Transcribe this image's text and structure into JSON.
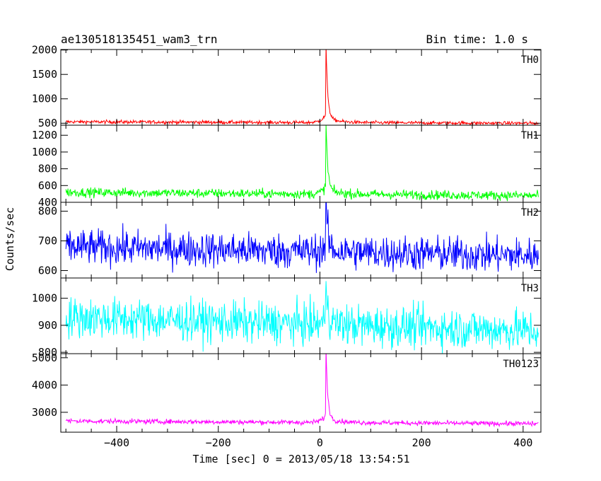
{
  "chart_data": {
    "type": "line",
    "title": "ae130518135451_wam3_trn",
    "bin_time_label": "Bin time: 1.0 s",
    "xlabel": "Time [sec] 0 = 2013/05/18 13:54:51",
    "ylabel": "Counts/sec",
    "xlim": [
      -510,
      435
    ],
    "x_ticks": [
      "−400",
      "−200",
      "0",
      "200",
      "400"
    ],
    "x_tick_values": [
      -400,
      -200,
      0,
      200,
      400
    ],
    "data_x_range": [
      -500,
      430
    ],
    "peak_time": 12,
    "panels": [
      {
        "name": "TH0",
        "color": "#ff0000",
        "ylim": [
          460,
          2010
        ],
        "y_ticks": [
          500,
          1000,
          1500,
          2000
        ],
        "y_tick_labels": [
          "500",
          "1000",
          "1500",
          "2000"
        ],
        "baseline_start": 530,
        "baseline_end": 500,
        "noise": 18,
        "peak": 2000
      },
      {
        "name": "TH1",
        "color": "#00ff00",
        "ylim": [
          400,
          1320
        ],
        "y_ticks": [
          400,
          600,
          800,
          1000,
          1200
        ],
        "y_tick_labels": [
          "400",
          "600",
          "800",
          "1000",
          "1200"
        ],
        "baseline_start": 520,
        "baseline_end": 480,
        "noise": 28,
        "peak": 1300
      },
      {
        "name": "TH2",
        "color": "#0000ff",
        "ylim": [
          575,
          830
        ],
        "y_ticks": [
          600,
          700,
          800
        ],
        "y_tick_labels": [
          "600",
          "700",
          "800"
        ],
        "baseline_start": 680,
        "baseline_end": 650,
        "noise": 30,
        "peak": 830
      },
      {
        "name": "TH3",
        "color": "#00ffff",
        "ylim": [
          795,
          1075
        ],
        "y_ticks": [
          800,
          900,
          1000
        ],
        "y_tick_labels": [
          "800",
          "900",
          "1000"
        ],
        "baseline_start": 930,
        "baseline_end": 880,
        "noise": 38,
        "peak": 1080
      },
      {
        "name": "TH0123",
        "color": "#ff00ff",
        "ylim": [
          2270,
          5150
        ],
        "y_ticks": [
          3000,
          4000,
          5000
        ],
        "y_tick_labels": [
          "3000",
          "4000",
          "5000"
        ],
        "baseline_start": 2680,
        "baseline_end": 2580,
        "noise": 45,
        "peak": 5150
      }
    ]
  }
}
